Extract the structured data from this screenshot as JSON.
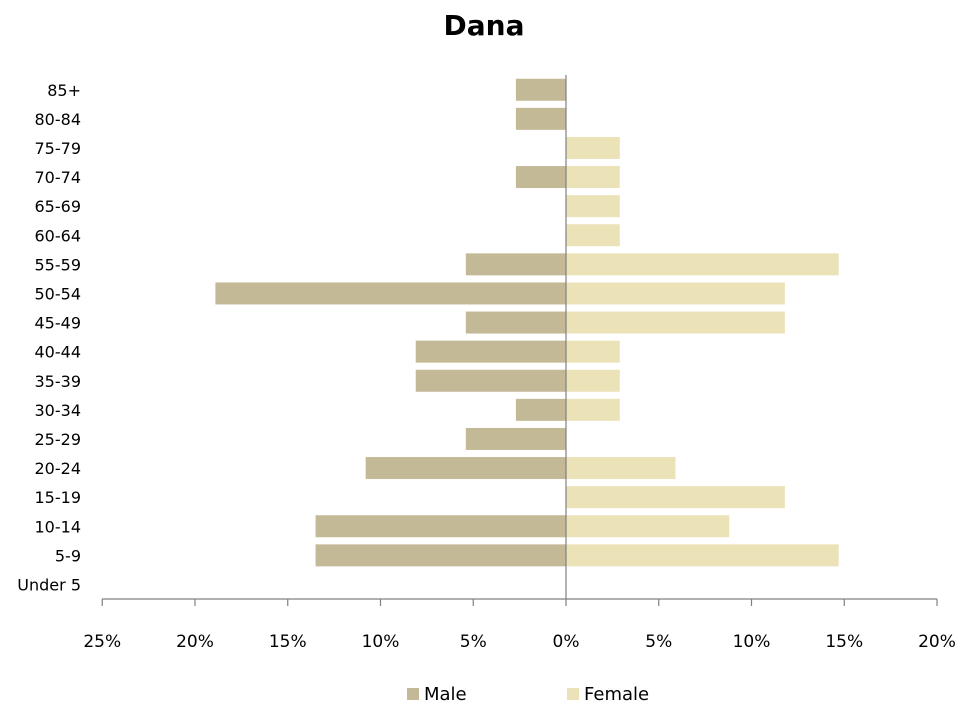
{
  "chart_data": {
    "type": "bar",
    "orientation": "horizontal",
    "title": "Dana",
    "categories": [
      "Under 5",
      "5-9",
      "10-14",
      "15-19",
      "20-24",
      "25-29",
      "30-34",
      "35-39",
      "40-44",
      "45-49",
      "50-54",
      "55-59",
      "60-64",
      "65-69",
      "70-74",
      "75-79",
      "80-84",
      "85+"
    ],
    "series": [
      {
        "name": "Male",
        "values": [
          0,
          13.5,
          13.5,
          0,
          10.8,
          5.4,
          2.7,
          8.1,
          8.1,
          5.4,
          18.9,
          5.4,
          0,
          0,
          2.7,
          0,
          2.7,
          2.7
        ]
      },
      {
        "name": "Female",
        "values": [
          0,
          14.7,
          8.8,
          11.8,
          5.9,
          0,
          2.9,
          2.9,
          2.9,
          11.8,
          11.8,
          14.7,
          2.9,
          2.9,
          2.9,
          2.9,
          0,
          0
        ]
      }
    ],
    "x_ticks": [
      "25%",
      "20%",
      "15%",
      "10%",
      "5%",
      "0%",
      "5%",
      "10%",
      "15%",
      "20%"
    ],
    "xlim": [
      -25,
      20
    ],
    "legend_position": "bottom",
    "colors": {
      "Male": "#c4b996",
      "Female": "#ebe2b7",
      "axis": "#808080"
    }
  }
}
